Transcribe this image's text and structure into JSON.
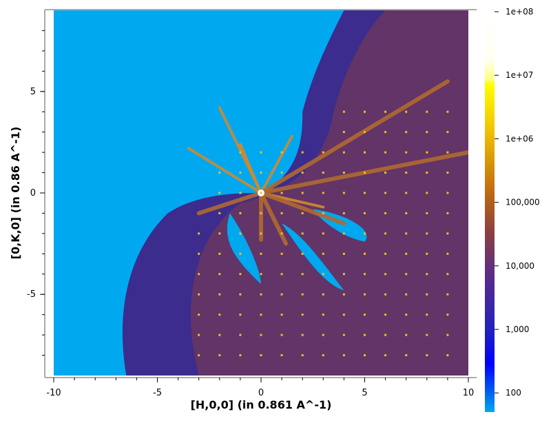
{
  "chart_data": {
    "type": "heatmap",
    "title": "",
    "xlabel": "[H,0,0] (in 0.861 A^-1)",
    "ylabel": "[0,K,0] (in 0.86 A^-1)",
    "xlim": [
      -10,
      10
    ],
    "ylim": [
      -9,
      9
    ],
    "x_ticks": [
      "-10",
      "-5",
      "0",
      "5",
      "10"
    ],
    "x_tick_values": [
      -10,
      -5,
      0,
      5,
      10
    ],
    "y_ticks": [
      "5",
      "0",
      "-5"
    ],
    "y_tick_values": [
      5,
      0,
      -5
    ],
    "colorbar": {
      "scale": "log",
      "range": [
        50,
        100000000
      ],
      "tick_labels": [
        "1e+08",
        "1e+07",
        "1e+06",
        "100,000",
        "10,000",
        "1,000",
        "100"
      ],
      "tick_values": [
        100000000,
        10000000,
        1000000,
        100000,
        10000,
        1000,
        100
      ],
      "colormap": [
        "#00a8f0",
        "#0000ff",
        "#3020a0",
        "#5a2c88",
        "#8a4040",
        "#c06010",
        "#f0a000",
        "#ffff00",
        "#ffffc0",
        "#ffffff"
      ]
    },
    "background_color": "#00a8f0",
    "bragg_peaks_lattice_spacing": 1,
    "center": [
      0,
      0
    ],
    "features": [
      "radial streak arms emanating from origin",
      "lattice of bright Bragg peaks at integer (H,K)",
      "no-data region in upper-left"
    ]
  },
  "colors": {
    "frame": "#999999",
    "background": "#00a8f0",
    "scatter_dark": "#3a2c8c",
    "scatter_mid": "#8a4a40",
    "scatter_hot": "#c06a18",
    "peak": "#f0c020"
  }
}
